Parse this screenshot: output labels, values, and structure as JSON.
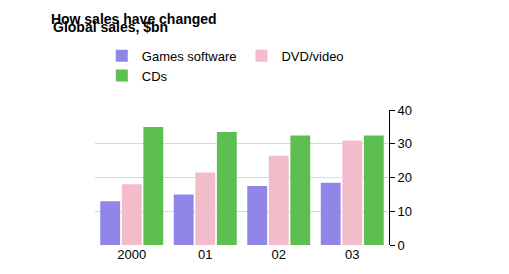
{
  "chart_data": {
    "type": "bar",
    "title": "How sales have changed",
    "subtitle": "Global sales, $bn",
    "categories": [
      "2000",
      "01",
      "02",
      "03"
    ],
    "series": [
      {
        "name": "Games software",
        "color": "#8f86e8",
        "values": [
          13,
          15,
          17.5,
          18.5
        ]
      },
      {
        "name": "DVD/video",
        "color": "#f2bccb",
        "values": [
          18,
          21.5,
          26.5,
          31
        ]
      },
      {
        "name": "CDs",
        "color": "#5cbf4f",
        "values": [
          35,
          33.5,
          32.5,
          32.5
        ]
      }
    ],
    "ylim": [
      0,
      40
    ],
    "yticks": [
      0,
      10,
      20,
      30,
      40
    ],
    "grid": true,
    "legend": "top"
  }
}
